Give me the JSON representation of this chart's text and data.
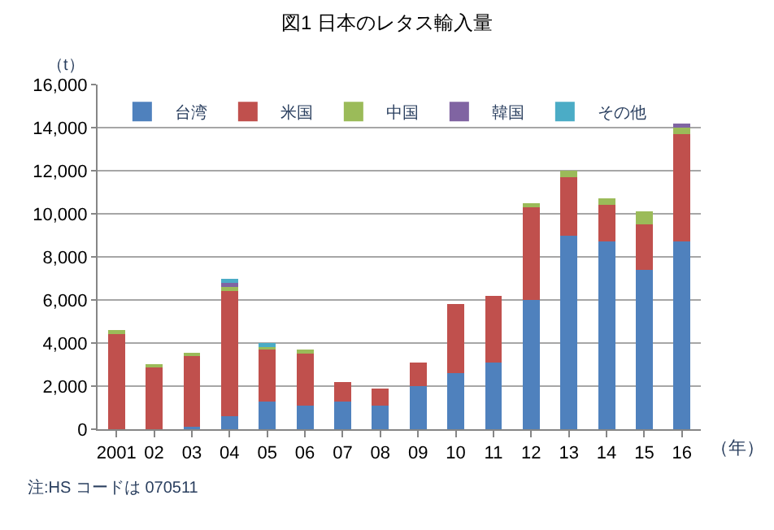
{
  "chart_data": {
    "type": "bar",
    "stacked": true,
    "title": "図1 日本のレタス輸入量",
    "ylabel": "（t）",
    "xlabel": "（年）",
    "categories": [
      "2001",
      "02",
      "03",
      "04",
      "05",
      "06",
      "07",
      "08",
      "09",
      "10",
      "11",
      "12",
      "13",
      "14",
      "15",
      "16"
    ],
    "series": [
      {
        "name": "台湾",
        "color": "#4f81bd",
        "values": [
          0,
          0,
          100,
          600,
          1300,
          1100,
          1300,
          1100,
          2000,
          2600,
          3100,
          6000,
          9000,
          8700,
          7400,
          8700
        ]
      },
      {
        "name": "米国",
        "color": "#c0504d",
        "values": [
          4400,
          2900,
          3300,
          5800,
          2400,
          2400,
          900,
          800,
          1100,
          3200,
          3100,
          4300,
          2700,
          1700,
          2100,
          5000
        ]
      },
      {
        "name": "中国",
        "color": "#9bbb59",
        "values": [
          200,
          100,
          100,
          200,
          100,
          200,
          0,
          0,
          0,
          0,
          0,
          200,
          300,
          300,
          600,
          300
        ]
      },
      {
        "name": "韓国",
        "color": "#8064a2",
        "values": [
          0,
          0,
          0,
          200,
          0,
          0,
          0,
          0,
          0,
          0,
          0,
          0,
          0,
          0,
          0,
          200
        ]
      },
      {
        "name": "その他",
        "color": "#4bacc6",
        "values": [
          0,
          0,
          0,
          200,
          200,
          0,
          0,
          0,
          0,
          0,
          0,
          0,
          0,
          0,
          0,
          0
        ]
      }
    ],
    "ylim": [
      0,
      16000
    ],
    "yticks": [
      {
        "value": 0,
        "label": "0"
      },
      {
        "value": 2000,
        "label": "2,000"
      },
      {
        "value": 4000,
        "label": "4,000"
      },
      {
        "value": 6000,
        "label": "6,000"
      },
      {
        "value": 8000,
        "label": "8,000"
      },
      {
        "value": 10000,
        "label": "10,000"
      },
      {
        "value": 12000,
        "label": "12,000"
      },
      {
        "value": 14000,
        "label": "14,000"
      },
      {
        "value": 16000,
        "label": "16,000"
      }
    ],
    "grid": "y",
    "legend": "top",
    "annotations": [
      "注:HS コードは 070511"
    ]
  }
}
